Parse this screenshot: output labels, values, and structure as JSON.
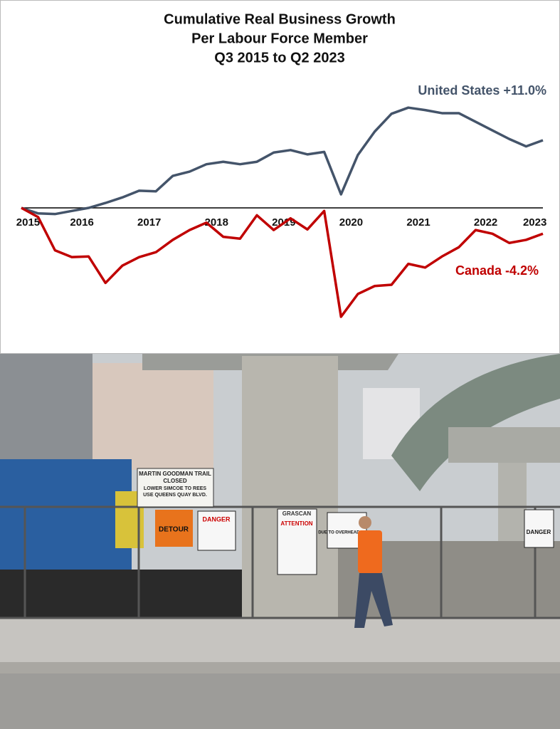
{
  "chart_data": {
    "type": "line",
    "title": [
      "Cumulative Real Business Growth",
      "Per Labour Force Member",
      "Q3 2015 to Q2 2023"
    ],
    "x": [
      2015.5,
      2015.75,
      2016.0,
      2016.25,
      2016.5,
      2016.75,
      2017.0,
      2017.25,
      2017.5,
      2017.75,
      2018.0,
      2018.25,
      2018.5,
      2018.75,
      2019.0,
      2019.25,
      2019.5,
      2019.75,
      2020.0,
      2020.25,
      2020.5,
      2020.75,
      2021.0,
      2021.25,
      2021.5,
      2021.75,
      2022.0,
      2022.25,
      2022.5,
      2022.75,
      2023.0,
      2023.25
    ],
    "series": [
      {
        "name": "United States +11.0%",
        "color": "#44546a",
        "values": [
          0,
          -0.9,
          -1.0,
          -0.5,
          0,
          0.8,
          1.7,
          2.8,
          2.7,
          5.2,
          5.9,
          7.1,
          7.5,
          7.1,
          7.5,
          9.0,
          9.4,
          8.7,
          9.1,
          2.2,
          8.6,
          12.4,
          15.3,
          16.3,
          15.9,
          15.4,
          15.4,
          14.0,
          12.6,
          11.2,
          10.0,
          11.0
        ]
      },
      {
        "name": "Canada -4.2%",
        "color": "#c00000",
        "values": [
          0,
          -1.5,
          -6.9,
          -8.0,
          -7.9,
          -12.2,
          -9.4,
          -8.0,
          -7.2,
          -5.2,
          -3.6,
          -2.4,
          -4.7,
          -5.0,
          -1.2,
          -3.6,
          -1.7,
          -3.5,
          -0.5,
          -17.7,
          -14.0,
          -12.7,
          -12.5,
          -9.1,
          -9.7,
          -7.9,
          -6.4,
          -3.6,
          -4.2,
          -5.7,
          -5.2,
          -4.2
        ]
      }
    ],
    "xlim": [
      2015.5,
      2023.25
    ],
    "xticks": [
      {
        "value": 2015.6,
        "label": "2015"
      },
      {
        "value": 2016.4,
        "label": "2016"
      },
      {
        "value": 2017.4,
        "label": "2017"
      },
      {
        "value": 2018.4,
        "label": "2018"
      },
      {
        "value": 2019.4,
        "label": "2019"
      },
      {
        "value": 2020.4,
        "label": "2020"
      },
      {
        "value": 2021.4,
        "label": "2021"
      },
      {
        "value": 2022.4,
        "label": "2022"
      },
      {
        "value": 2023.13,
        "label": "2023"
      }
    ],
    "ylim": [
      -19.5,
      18
    ],
    "grid": false
  },
  "photo": {
    "signs": [
      "MARTIN GOODMAN TRAIL",
      "CLOSED",
      "LOWER SIMCOE TO REES",
      "USE QUEENS QUAY BLVD.",
      "DETOUR",
      "DANGER",
      "GRASCAN",
      "ATTENTION",
      "DUE TO OVERHEAD WIRES"
    ]
  }
}
